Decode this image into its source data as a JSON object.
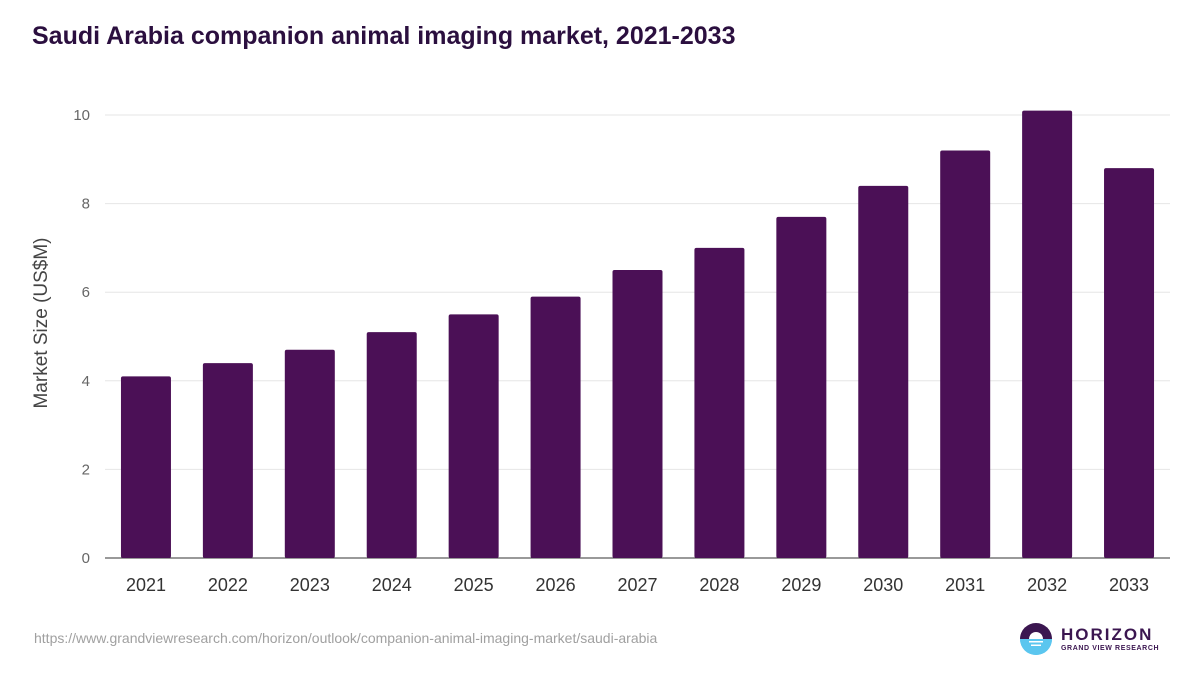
{
  "chart_data": {
    "type": "bar",
    "title": "Saudi Arabia companion animal imaging market, 2021-2033",
    "xlabel": "",
    "ylabel": "Market Size (US$M)",
    "categories": [
      "2021",
      "2022",
      "2023",
      "2024",
      "2025",
      "2026",
      "2027",
      "2028",
      "2029",
      "2030",
      "2031",
      "2032",
      "2033"
    ],
    "values": [
      4.1,
      4.4,
      4.7,
      5.1,
      5.5,
      5.9,
      6.5,
      7.0,
      7.7,
      8.4,
      9.2,
      10.1,
      8.8
    ],
    "ylim": [
      0,
      10
    ],
    "yticks": [
      "0",
      "2",
      "4",
      "6",
      "8",
      "10"
    ],
    "grid": true,
    "bar_color": "#4b1056"
  },
  "footer": {
    "source_url": "https://www.grandviewresearch.com/horizon/outlook/companion-animal-imaging-market/saudi-arabia",
    "logo_main": "HORIZON",
    "logo_sub": "GRAND VIEW RESEARCH"
  }
}
